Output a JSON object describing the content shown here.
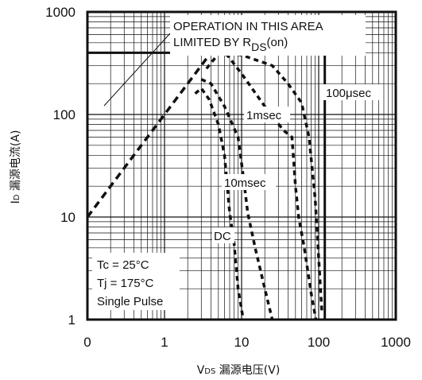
{
  "chart_data": {
    "type": "line",
    "title": "",
    "xlabel": "VDS 漏源电压(V)",
    "xlabel_main": "V",
    "xlabel_sub": "DS",
    "xlabel_rest": " 漏源电压(V)",
    "ylabel": "ID 漏源电流(A)",
    "ylabel_main": "I",
    "ylabel_sub": "D",
    "ylabel_rest": " 漏源电流(A)",
    "xscale": "log",
    "yscale": "log",
    "xlim": [
      0.1,
      1000
    ],
    "ylim": [
      1,
      1000
    ],
    "x_tick_labels": [
      "0",
      "1",
      "10",
      "100",
      "1000"
    ],
    "y_tick_labels": [
      "1",
      "10",
      "100",
      "1000"
    ],
    "grid": true,
    "limit_lines": {
      "current_limit_A": 400,
      "voltage_limit_V": 120
    },
    "rds_line": {
      "name": "OPERATION IN THIS AREA LIMITED BY RDS(on)",
      "x": [
        0.1,
        4.0
      ],
      "y": [
        10,
        400
      ]
    },
    "series": [
      {
        "name": "100μsec",
        "label_text": "100μsec",
        "style": "dashed",
        "x": [
          4.0,
          5.5,
          10,
          25,
          40,
          60,
          75,
          90,
          110
        ],
        "y": [
          400,
          400,
          380,
          300,
          200,
          130,
          60,
          15,
          1.2
        ]
      },
      {
        "name": "1msec",
        "label_text": "1msec",
        "style": "dashed",
        "x": [
          3.5,
          5.0,
          6.5,
          10,
          20,
          35,
          45,
          50,
          55,
          65,
          80,
          92
        ],
        "y": [
          280,
          390,
          380,
          250,
          120,
          70,
          60,
          20,
          10,
          5,
          1.8,
          1.0
        ]
      },
      {
        "name": "10msec",
        "label_text": "10msec",
        "style": "dashed",
        "x": [
          3.0,
          4.0,
          6.0,
          9.0,
          10.5,
          12,
          15,
          20,
          25
        ],
        "y": [
          220,
          200,
          120,
          60,
          25,
          11,
          5,
          2.0,
          1.0
        ]
      },
      {
        "name": "DC",
        "label_text": "DC",
        "style": "dashed",
        "x": [
          2.5,
          3.0,
          3.8,
          5.0,
          6.0,
          7.0,
          8.0,
          9.0,
          10.5
        ],
        "y": [
          160,
          180,
          140,
          80,
          40,
          11,
          5.5,
          2.0,
          1.0
        ]
      }
    ],
    "annotations": {
      "area_line1": "OPERATION IN THIS AREA",
      "area_line2_a": "LIMITED BY R",
      "area_line2_sub": "DS",
      "area_line2_b": "(on)"
    },
    "conditions": [
      "Tc = 25°C",
      "Tj = 175°C",
      "Single Pulse"
    ]
  }
}
